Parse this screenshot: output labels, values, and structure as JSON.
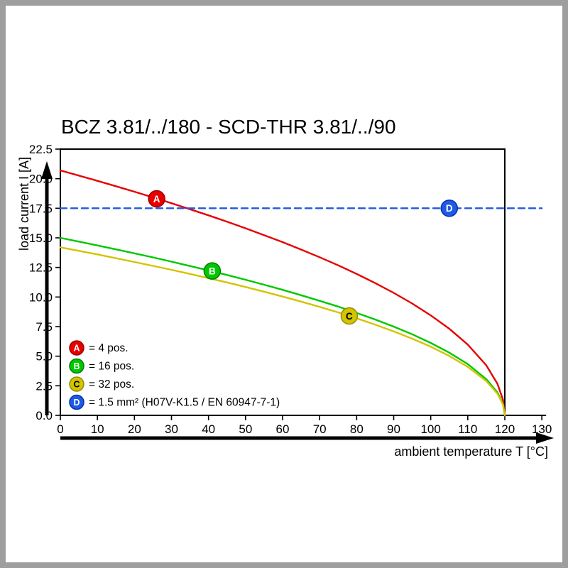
{
  "frame": {
    "border_color": "#9e9e9e"
  },
  "chart_data": {
    "type": "line",
    "title": "BCZ 3.81/../180 - SCD-THR 3.81/../90",
    "xlabel": "ambient temperature T [°C]",
    "ylabel": "load current I [A]",
    "xlim": [
      0,
      130
    ],
    "ylim": [
      0,
      22.5
    ],
    "box_x_max": 120,
    "grid": false,
    "legend_position": "inside-bottom-left",
    "x_ticks": [
      0,
      10,
      20,
      30,
      40,
      50,
      60,
      70,
      80,
      90,
      100,
      110,
      120,
      130
    ],
    "y_ticks": [
      0,
      2.5,
      5,
      7.5,
      10,
      12.5,
      15,
      17.5,
      20,
      22.5
    ],
    "series": [
      {
        "id": "A",
        "legend_label": "= 4 pos.",
        "color": "#e60000",
        "edge_color": "#9e0000",
        "style": "solid",
        "marker": {
          "t": 26,
          "i": 18.3,
          "letter_color": "#ffffff"
        },
        "points": [
          [
            0,
            20.7
          ],
          [
            5,
            20.26
          ],
          [
            10,
            19.82
          ],
          [
            15,
            19.36
          ],
          [
            20,
            18.9
          ],
          [
            25,
            18.42
          ],
          [
            30,
            17.93
          ],
          [
            35,
            17.42
          ],
          [
            40,
            16.9
          ],
          [
            45,
            16.36
          ],
          [
            50,
            15.81
          ],
          [
            55,
            15.23
          ],
          [
            60,
            14.64
          ],
          [
            65,
            14.01
          ],
          [
            70,
            13.36
          ],
          [
            75,
            12.68
          ],
          [
            80,
            11.95
          ],
          [
            85,
            11.18
          ],
          [
            90,
            10.35
          ],
          [
            95,
            9.45
          ],
          [
            100,
            8.45
          ],
          [
            105,
            7.32
          ],
          [
            110,
            5.98
          ],
          [
            115,
            4.23
          ],
          [
            118,
            2.67
          ],
          [
            119.5,
            1.34
          ],
          [
            120,
            0
          ]
        ]
      },
      {
        "id": "B",
        "legend_label": "= 16 pos.",
        "color": "#00c800",
        "edge_color": "#007d00",
        "style": "solid",
        "marker": {
          "t": 41,
          "i": 12.2,
          "letter_color": "#ffffff"
        },
        "points": [
          [
            0,
            15
          ],
          [
            5,
            14.68
          ],
          [
            10,
            14.36
          ],
          [
            15,
            14.03
          ],
          [
            20,
            13.69
          ],
          [
            25,
            13.35
          ],
          [
            30,
            12.99
          ],
          [
            35,
            12.62
          ],
          [
            40,
            12.25
          ],
          [
            45,
            11.86
          ],
          [
            50,
            11.46
          ],
          [
            55,
            11.04
          ],
          [
            60,
            10.61
          ],
          [
            65,
            10.15
          ],
          [
            70,
            9.68
          ],
          [
            75,
            9.19
          ],
          [
            80,
            8.66
          ],
          [
            85,
            8.1
          ],
          [
            90,
            7.5
          ],
          [
            95,
            6.85
          ],
          [
            100,
            6.12
          ],
          [
            105,
            5.3
          ],
          [
            110,
            4.33
          ],
          [
            115,
            3.06
          ],
          [
            118,
            1.94
          ],
          [
            119.5,
            0.97
          ],
          [
            120,
            0
          ]
        ]
      },
      {
        "id": "C",
        "legend_label": "= 32 pos.",
        "color": "#d2c400",
        "edge_color": "#968c00",
        "style": "solid",
        "marker": {
          "t": 78,
          "i": 8.4,
          "letter_color": "#000000"
        },
        "points": [
          [
            0,
            14.2
          ],
          [
            5,
            13.9
          ],
          [
            10,
            13.6
          ],
          [
            15,
            13.28
          ],
          [
            20,
            12.96
          ],
          [
            25,
            12.63
          ],
          [
            30,
            12.3
          ],
          [
            35,
            11.95
          ],
          [
            40,
            11.59
          ],
          [
            45,
            11.23
          ],
          [
            50,
            10.85
          ],
          [
            55,
            10.45
          ],
          [
            60,
            10.04
          ],
          [
            65,
            9.61
          ],
          [
            70,
            9.17
          ],
          [
            75,
            8.7
          ],
          [
            80,
            8.2
          ],
          [
            85,
            7.67
          ],
          [
            90,
            7.1
          ],
          [
            95,
            6.48
          ],
          [
            100,
            5.8
          ],
          [
            105,
            5.02
          ],
          [
            110,
            4.1
          ],
          [
            115,
            2.9
          ],
          [
            118,
            1.83
          ],
          [
            119.5,
            0.92
          ],
          [
            120,
            0
          ]
        ]
      },
      {
        "id": "D",
        "legend_label": "= 1.5 mm² (H07V-K1.5 / EN 60947-7-1)",
        "color": "#1f5ae6",
        "edge_color": "#0033aa",
        "style": "dashed",
        "marker": {
          "t": 105,
          "i": 17.5,
          "letter_color": "#ffffff"
        },
        "points": [
          [
            0,
            17.5
          ],
          [
            130,
            17.5
          ]
        ]
      }
    ]
  }
}
